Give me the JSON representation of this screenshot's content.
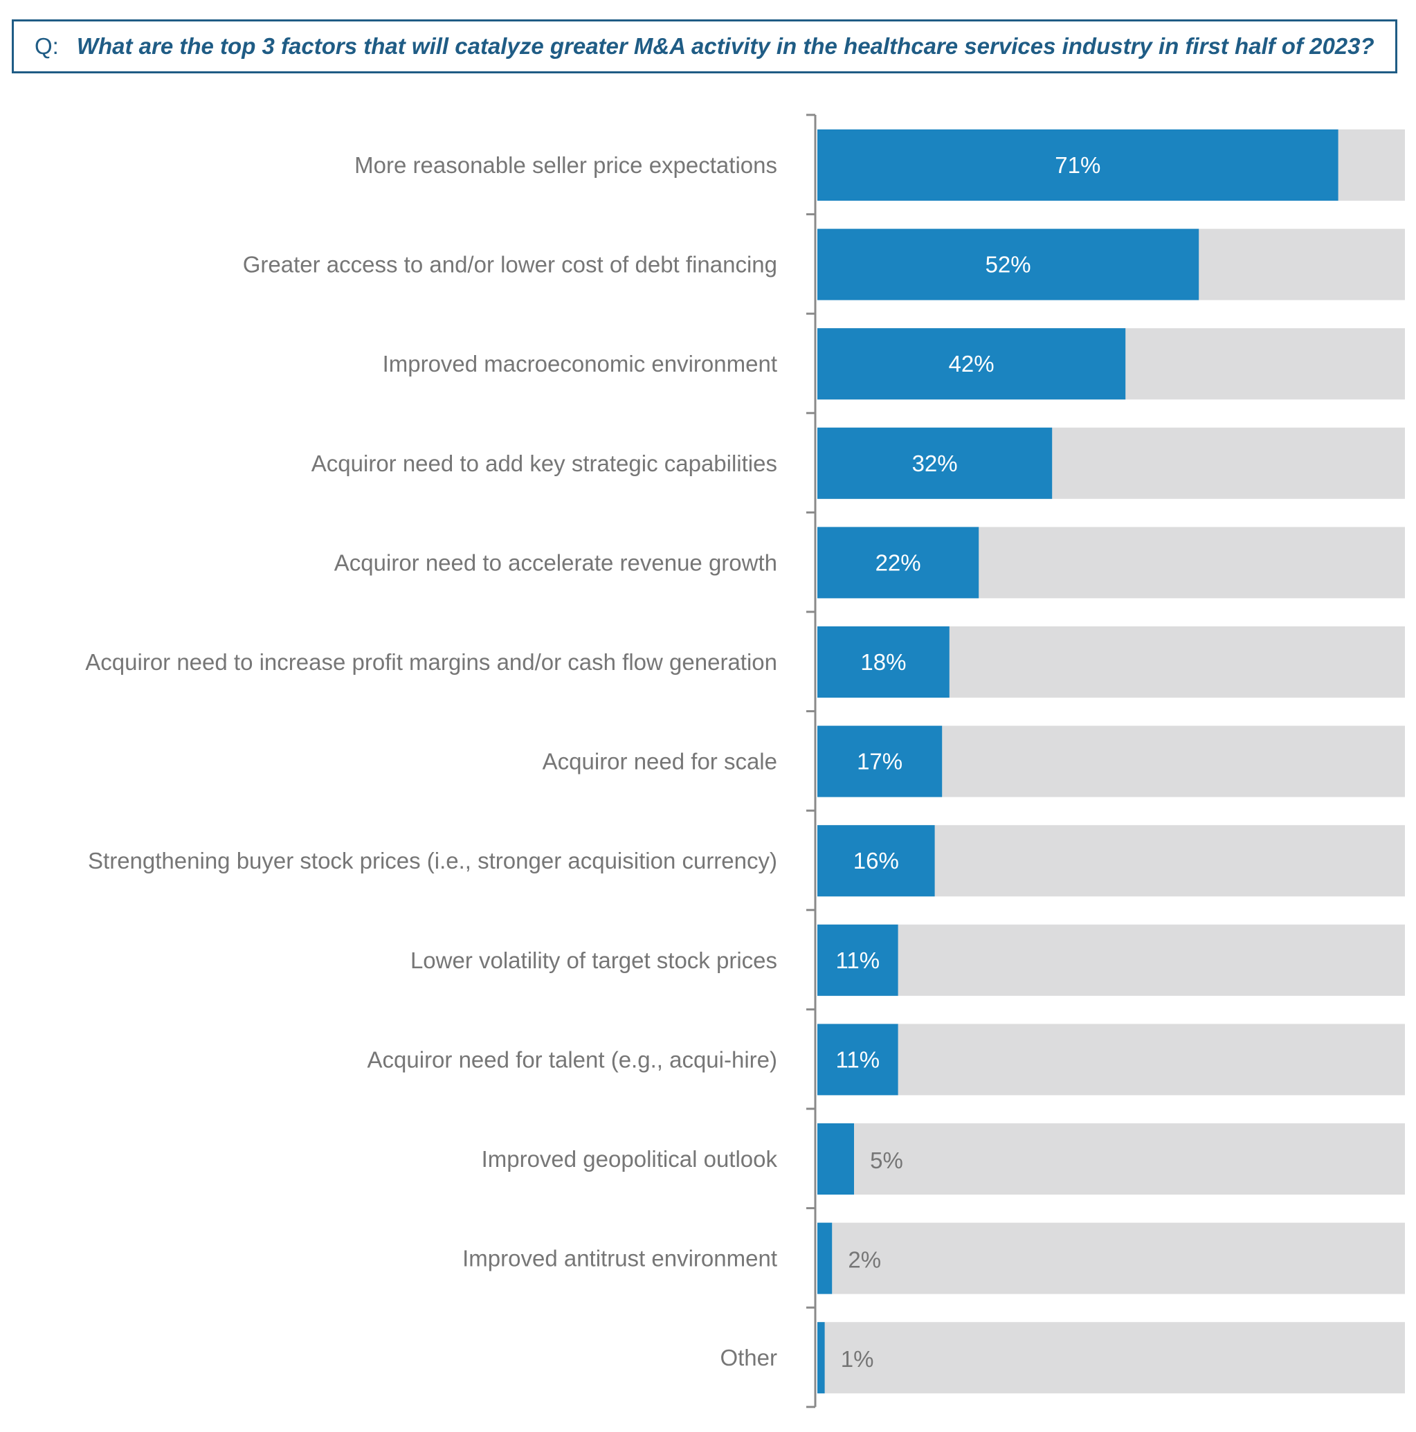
{
  "question": {
    "prefix": "Q:",
    "text": "What are the top 3 factors that will catalyze greater M&A activity in the healthcare services industry in first half of 2023?"
  },
  "colors": {
    "bar": "#1b84c0",
    "track": "#dcdcdd",
    "axis": "#8a8a8a",
    "label": "#767676",
    "value_inside": "#ffffff",
    "value_outside": "#767676",
    "frame": "#1f5c85"
  },
  "chart_data": {
    "type": "bar",
    "orientation": "horizontal",
    "title": "",
    "xlabel": "",
    "ylabel": "",
    "xlim": [
      0,
      100
    ],
    "grid": false,
    "legend": "none",
    "categories": [
      "More reasonable seller price expectations",
      "Greater access to and/or lower cost of debt financing",
      "Improved macroeconomic environment",
      "Acquiror need to add key strategic capabilities",
      "Acquiror need to accelerate revenue growth",
      "Acquiror need to increase profit margins and/or cash flow generation",
      "Acquiror need for scale",
      "Strengthening buyer stock prices  (i.e., stronger acquisition currency)",
      "Lower volatility of target stock prices",
      "Acquiror need for talent (e.g., acqui-hire)",
      "Improved geopolitical outlook",
      "Improved antitrust environment",
      "Other"
    ],
    "values": [
      71,
      52,
      42,
      32,
      22,
      18,
      17,
      16,
      11,
      11,
      5,
      2,
      1
    ],
    "value_labels": [
      "71%",
      "52%",
      "42%",
      "32%",
      "22%",
      "18%",
      "17%",
      "16%",
      "11%",
      "11%",
      "5%",
      "2%",
      "1%"
    ]
  }
}
